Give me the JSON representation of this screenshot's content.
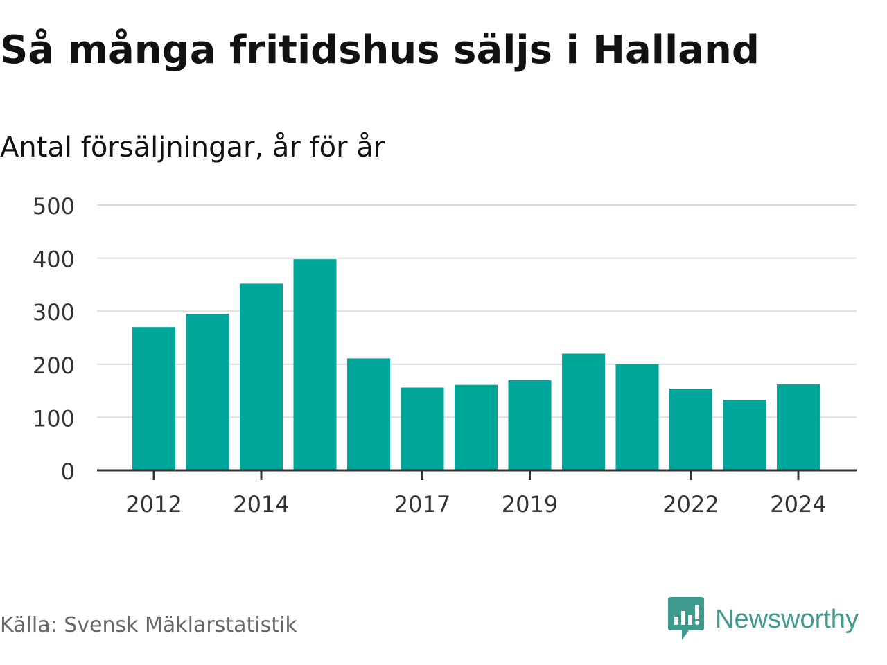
{
  "header": {
    "title": "Så många fritidshus säljs i Halland",
    "subtitle": "Antal försäljningar, år för år"
  },
  "footer": {
    "source": "Källa: Svensk Mäklarstatistik",
    "brand": "Newsworthy",
    "brand_icon": "newsworthy-logo-icon"
  },
  "colors": {
    "bar": "#00a69a",
    "grid": "#dddddd",
    "axis": "#333333",
    "brand": "#3f9a8e"
  },
  "chart_data": {
    "type": "bar",
    "categories": [
      "2012",
      "2013",
      "2014",
      "2015",
      "2016",
      "2017",
      "2018",
      "2019",
      "2020",
      "2021",
      "2022",
      "2023",
      "2024"
    ],
    "values": [
      270,
      295,
      352,
      398,
      211,
      156,
      161,
      170,
      220,
      200,
      154,
      133,
      162
    ],
    "x_tick_labels": [
      "2012",
      "2014",
      "2017",
      "2019",
      "2022",
      "2024"
    ],
    "y_ticks": [
      0,
      100,
      200,
      300,
      400,
      500
    ],
    "ylim": [
      0,
      500
    ],
    "grid": true
  }
}
